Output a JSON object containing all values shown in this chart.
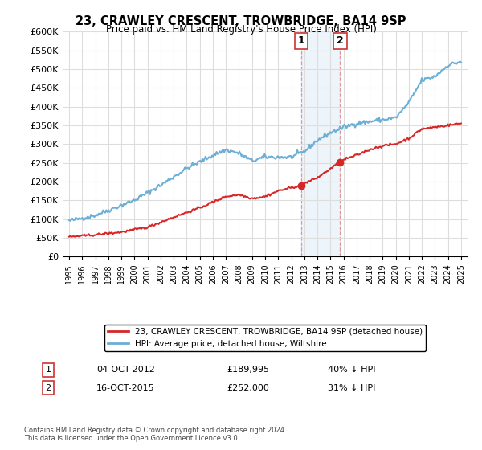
{
  "title": "23, CRAWLEY CRESCENT, TROWBRIDGE, BA14 9SP",
  "subtitle": "Price paid vs. HM Land Registry's House Price Index (HPI)",
  "hpi_color": "#6baed6",
  "price_color": "#d62728",
  "marker_color": "#d62728",
  "highlight_bg": "#c6dbef",
  "sale1_year": 2012.75,
  "sale2_year": 2015.75,
  "sale1_price": 189995,
  "sale2_price": 252000,
  "legend_items": [
    "23, CRAWLEY CRESCENT, TROWBRIDGE, BA14 9SP (detached house)",
    "HPI: Average price, detached house, Wiltshire"
  ],
  "annotation1_label": "1",
  "annotation1_date": "04-OCT-2012",
  "annotation1_price": "£189,995",
  "annotation1_pct": "40% ↓ HPI",
  "annotation2_label": "2",
  "annotation2_date": "16-OCT-2015",
  "annotation2_price": "£252,000",
  "annotation2_pct": "31% ↓ HPI",
  "footer": "Contains HM Land Registry data © Crown copyright and database right 2024.\nThis data is licensed under the Open Government Licence v3.0.",
  "ylim": [
    0,
    600000
  ],
  "yticks": [
    0,
    50000,
    100000,
    150000,
    200000,
    250000,
    300000,
    350000,
    400000,
    450000,
    500000,
    550000,
    600000
  ]
}
